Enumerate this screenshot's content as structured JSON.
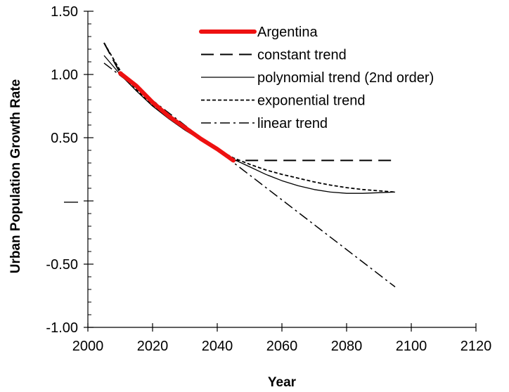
{
  "chart_data": {
    "type": "line",
    "title": "",
    "xlabel": "Year",
    "ylabel": "Urban Population Growth Rate",
    "xlim": [
      2000,
      2120
    ],
    "ylim": [
      -1.0,
      1.5
    ],
    "x_ticks": [
      2000,
      2020,
      2040,
      2060,
      2080,
      2100,
      2120
    ],
    "x_tick_labels": [
      "2000",
      "2020",
      "2040",
      "2060",
      "2080",
      "2100",
      "2120"
    ],
    "y_ticks": [
      1.5,
      1.0,
      0.5,
      0.0,
      -0.5,
      -1.0
    ],
    "y_tick_labels": [
      "1.50",
      "1.00",
      "0.50",
      "—",
      "-0.50",
      "-1.00"
    ],
    "y_minor_step": 0.1,
    "grid": false,
    "legend_position": "top-right",
    "series": [
      {
        "name": "Argentina",
        "color": "#ee1111",
        "style": "solid-thick",
        "x": [
          2010,
          2015,
          2020,
          2025,
          2030,
          2035,
          2040,
          2045
        ],
        "y": [
          1.01,
          0.91,
          0.78,
          0.67,
          0.58,
          0.49,
          0.41,
          0.32
        ]
      },
      {
        "name": "constant trend",
        "color": "#000000",
        "style": "long-dash",
        "x": [
          2005,
          2010,
          2015,
          2020,
          2025,
          2030,
          2035,
          2040,
          2045,
          2050,
          2060,
          2070,
          2080,
          2090,
          2095
        ],
        "y": [
          1.25,
          1.01,
          0.91,
          0.78,
          0.67,
          0.58,
          0.49,
          0.41,
          0.32,
          0.32,
          0.32,
          0.32,
          0.32,
          0.32,
          0.32
        ]
      },
      {
        "name": "polynomial trend (2nd order)",
        "color": "#000000",
        "style": "solid",
        "x": [
          2005,
          2010,
          2015,
          2020,
          2025,
          2030,
          2035,
          2040,
          2045,
          2050,
          2055,
          2060,
          2065,
          2070,
          2075,
          2080,
          2085,
          2090,
          2095
        ],
        "y": [
          1.15,
          1.0,
          0.87,
          0.75,
          0.65,
          0.56,
          0.48,
          0.4,
          0.33,
          0.27,
          0.21,
          0.16,
          0.12,
          0.09,
          0.07,
          0.06,
          0.06,
          0.065,
          0.07
        ]
      },
      {
        "name": "exponential trend",
        "color": "#000000",
        "style": "short-dash",
        "x": [
          2005,
          2010,
          2015,
          2020,
          2025,
          2030,
          2035,
          2040,
          2045,
          2050,
          2055,
          2060,
          2065,
          2070,
          2075,
          2080,
          2085,
          2090,
          2095
        ],
        "y": [
          1.25,
          1.03,
          0.88,
          0.76,
          0.66,
          0.57,
          0.49,
          0.41,
          0.34,
          0.29,
          0.245,
          0.21,
          0.18,
          0.15,
          0.125,
          0.105,
          0.09,
          0.08,
          0.07
        ]
      },
      {
        "name": "linear trend",
        "color": "#000000",
        "style": "dash-dot",
        "x": [
          2005,
          2095
        ],
        "y": [
          1.09,
          -0.68
        ]
      }
    ]
  }
}
